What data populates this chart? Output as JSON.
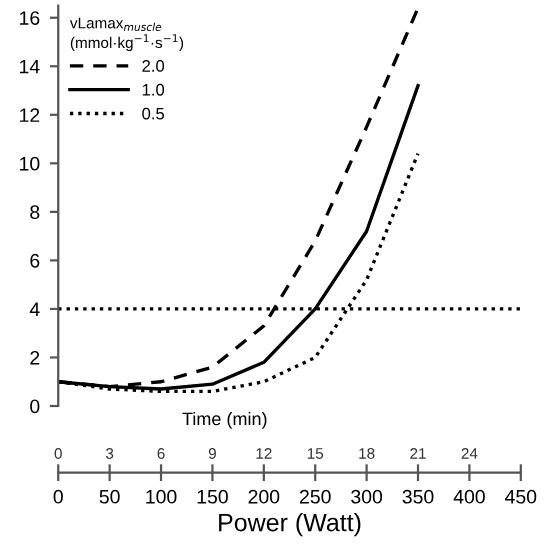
{
  "chart_data": {
    "type": "line",
    "x": [
      0,
      50,
      100,
      150,
      200,
      250,
      300,
      350
    ],
    "series": [
      {
        "name": "2.0",
        "color": "#000000",
        "line_style": "dashed",
        "values": [
          1.0,
          0.8,
          1.0,
          1.6,
          3.3,
          6.8,
          11.5,
          16.4
        ]
      },
      {
        "name": "1.0",
        "color": "#000000",
        "line_style": "solid",
        "values": [
          1.0,
          0.8,
          0.7,
          0.9,
          1.8,
          4.0,
          7.2,
          13.2
        ]
      },
      {
        "name": "0.5",
        "color": "#000000",
        "line_style": "dotted",
        "values": [
          1.0,
          0.7,
          0.6,
          0.6,
          1.0,
          2.0,
          5.2,
          10.4
        ]
      }
    ],
    "legend_title": "vLamax$_{muscle}$\n(mmol·kg$^{−1}$·s$^{−1}$)",
    "legend": "top left",
    "xlabel": "Power (Watt)",
    "xlim": [
      0,
      450
    ],
    "xticks": [
      0,
      50,
      100,
      150,
      200,
      250,
      300,
      350,
      400,
      450
    ],
    "x2label": "Time (min)",
    "x2lim": [
      0,
      27
    ],
    "x2ticks": [
      0,
      3,
      6,
      9,
      12,
      15,
      18,
      21,
      24
    ],
    "ylim": [
      0,
      16.5
    ],
    "yticks": [
      0,
      2,
      4,
      6,
      8,
      10,
      12,
      14,
      16
    ],
    "ref_lines": [
      {
        "axis": "y",
        "value": 4,
        "color": "#000000",
        "line_style": "dotted"
      }
    ],
    "grid": false,
    "marker": "none"
  }
}
